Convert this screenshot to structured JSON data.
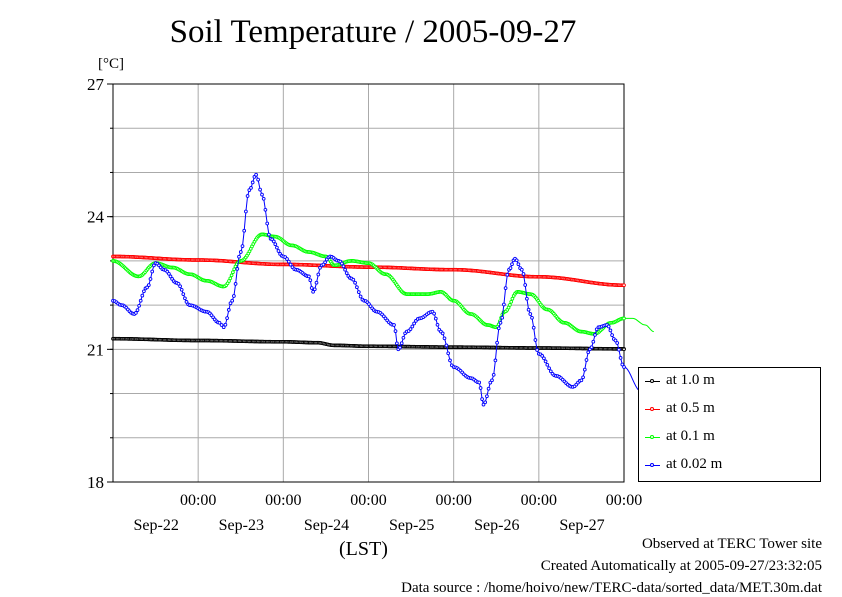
{
  "title": "Soil Temperature / 2005-09-27",
  "unit_label": "[°C]",
  "lst_label": "(LST)",
  "footer": {
    "line1": "Observed at TERC Tower site",
    "line2": "Created Automatically at 2005-09-27/23:32:05",
    "line3": "Data source : /home/hoivo/new/TERC-data/sorted_data/MET.30m.dat"
  },
  "chart_data": {
    "type": "line",
    "title": "Soil Temperature / 2005-09-27",
    "ylabel": "[°C]",
    "xlabel": "(LST)",
    "ylim": [
      18,
      27
    ],
    "yticks": [
      18,
      21,
      24,
      27
    ],
    "xlim": [
      -1.0,
      5.0
    ],
    "x_unit": "days since Sep-22 00:00",
    "xticks": [
      {
        "x": 0,
        "time": "00:00",
        "date": "Sep-22"
      },
      {
        "x": 1,
        "time": "00:00",
        "date": "Sep-23"
      },
      {
        "x": 2,
        "time": "00:00",
        "date": "Sep-24"
      },
      {
        "x": 3,
        "time": "00:00",
        "date": "Sep-25"
      },
      {
        "x": 4,
        "time": "00:00",
        "date": "Sep-26"
      },
      {
        "x": 5,
        "time": "00:00",
        "date": "Sep-27"
      }
    ],
    "grid": true,
    "legend_position": "right-bottom",
    "series": [
      {
        "name": "at 1.0 m",
        "color": "#000000",
        "points": [
          [
            -1.0,
            21.24
          ],
          [
            0.0,
            21.2
          ],
          [
            1.0,
            21.17
          ],
          [
            1.4,
            21.15
          ],
          [
            1.6,
            21.09
          ],
          [
            2.0,
            21.07
          ],
          [
            3.0,
            21.05
          ],
          [
            4.0,
            21.03
          ],
          [
            5.0,
            21.01
          ],
          [
            5.0,
            21.0
          ]
        ]
      },
      {
        "name": "at 0.5 m",
        "color": "#ff0000",
        "points": [
          [
            -1.0,
            23.1
          ],
          [
            0.0,
            23.02
          ],
          [
            1.0,
            22.92
          ],
          [
            2.0,
            22.86
          ],
          [
            3.0,
            22.8
          ],
          [
            4.0,
            22.64
          ],
          [
            5.0,
            22.45
          ]
        ]
      },
      {
        "name": "at 0.1 m",
        "color": "#00ff00",
        "points": [
          [
            -1.0,
            23.0
          ],
          [
            -0.7,
            22.65
          ],
          [
            -0.5,
            22.95
          ],
          [
            -0.3,
            22.85
          ],
          [
            -0.1,
            22.7
          ],
          [
            0.1,
            22.55
          ],
          [
            0.3,
            22.42
          ],
          [
            0.5,
            23.0
          ],
          [
            0.75,
            23.6
          ],
          [
            0.9,
            23.55
          ],
          [
            1.1,
            23.35
          ],
          [
            1.3,
            23.2
          ],
          [
            1.5,
            23.1
          ],
          [
            1.6,
            22.9
          ],
          [
            1.8,
            23.0
          ],
          [
            2.0,
            22.95
          ],
          [
            2.2,
            22.7
          ],
          [
            2.45,
            22.25
          ],
          [
            2.7,
            22.25
          ],
          [
            2.85,
            22.3
          ],
          [
            3.0,
            22.1
          ],
          [
            3.2,
            21.8
          ],
          [
            3.4,
            21.55
          ],
          [
            3.5,
            21.5
          ],
          [
            3.6,
            21.85
          ],
          [
            3.75,
            22.3
          ],
          [
            3.9,
            22.25
          ],
          [
            4.1,
            21.9
          ],
          [
            4.3,
            21.6
          ],
          [
            4.5,
            21.4
          ],
          [
            4.65,
            21.35
          ],
          [
            4.85,
            21.6
          ],
          [
            5.0,
            21.7
          ],
          [
            5.1,
            21.7
          ],
          [
            5.25,
            21.55
          ],
          [
            5.35,
            21.4
          ]
        ]
      },
      {
        "name": "at 0.02 m",
        "color": "#0000ff",
        "points": [
          [
            -1.0,
            22.1
          ],
          [
            -0.9,
            22.0
          ],
          [
            -0.75,
            21.8
          ],
          [
            -0.6,
            22.4
          ],
          [
            -0.5,
            22.95
          ],
          [
            -0.4,
            22.8
          ],
          [
            -0.25,
            22.5
          ],
          [
            -0.1,
            22.0
          ],
          [
            0.1,
            21.85
          ],
          [
            0.25,
            21.6
          ],
          [
            0.3,
            21.5
          ],
          [
            0.4,
            22.1
          ],
          [
            0.5,
            23.2
          ],
          [
            0.6,
            24.6
          ],
          [
            0.68,
            24.95
          ],
          [
            0.75,
            24.5
          ],
          [
            0.85,
            23.5
          ],
          [
            1.0,
            23.1
          ],
          [
            1.15,
            22.8
          ],
          [
            1.3,
            22.65
          ],
          [
            1.35,
            22.3
          ],
          [
            1.45,
            22.9
          ],
          [
            1.55,
            23.1
          ],
          [
            1.65,
            23.0
          ],
          [
            1.8,
            22.6
          ],
          [
            1.95,
            22.1
          ],
          [
            2.1,
            21.85
          ],
          [
            2.3,
            21.55
          ],
          [
            2.35,
            21.0
          ],
          [
            2.45,
            21.4
          ],
          [
            2.6,
            21.7
          ],
          [
            2.75,
            21.85
          ],
          [
            2.85,
            21.4
          ],
          [
            3.0,
            20.6
          ],
          [
            3.2,
            20.35
          ],
          [
            3.3,
            20.25
          ],
          [
            3.35,
            19.75
          ],
          [
            3.45,
            20.3
          ],
          [
            3.55,
            21.6
          ],
          [
            3.65,
            22.8
          ],
          [
            3.72,
            23.05
          ],
          [
            3.8,
            22.8
          ],
          [
            3.9,
            21.8
          ],
          [
            4.0,
            20.9
          ],
          [
            4.2,
            20.4
          ],
          [
            4.4,
            20.15
          ],
          [
            4.5,
            20.3
          ],
          [
            4.6,
            21.0
          ],
          [
            4.7,
            21.5
          ],
          [
            4.8,
            21.55
          ],
          [
            4.9,
            21.2
          ],
          [
            5.0,
            20.6
          ],
          [
            5.2,
            20.05
          ],
          [
            5.35,
            19.95
          ]
        ]
      }
    ]
  },
  "legend": [
    {
      "label": "at 1.0 m",
      "color": "#000000"
    },
    {
      "label": "at 0.5 m",
      "color": "#ff0000"
    },
    {
      "label": "at 0.1 m",
      "color": "#00ff00"
    },
    {
      "label": "at 0.02 m",
      "color": "#0000ff"
    }
  ]
}
